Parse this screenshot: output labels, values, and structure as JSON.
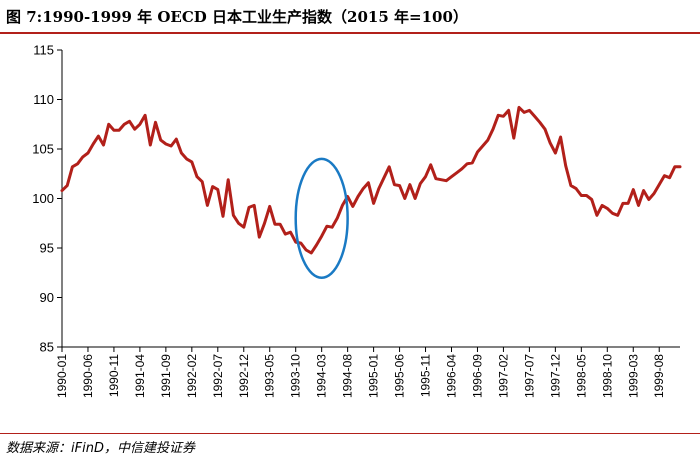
{
  "title": "图 7:1990-1999 年 OECD 日本工业生产指数（2015 年=100）",
  "source": "数据来源：iFinD，中信建投证券",
  "colors": {
    "line": "#b2201a",
    "highlight": "#1a7ac4",
    "rule": "#b2201a",
    "axis": "#000000"
  },
  "chart_data": {
    "type": "line",
    "title": "1990-1999 年 OECD 日本工业生产指数（2015 年=100）",
    "xlabel": "",
    "ylabel": "",
    "ylim": [
      85,
      115
    ],
    "yticks": [
      85,
      90,
      95,
      100,
      105,
      110,
      115
    ],
    "xtick_labels": [
      "1990-01",
      "1990-06",
      "1990-11",
      "1991-04",
      "1991-09",
      "1992-02",
      "1992-07",
      "1992-12",
      "1993-05",
      "1993-10",
      "1994-03",
      "1994-08",
      "1995-01",
      "1995-06",
      "1995-11",
      "1996-04",
      "1996-09",
      "1997-02",
      "1997-07",
      "1997-12",
      "1998-05",
      "1998-10",
      "1999-03",
      "1999-08"
    ],
    "highlight": {
      "shape": "ellipse",
      "x_range": [
        "1993-10",
        "1994-08"
      ],
      "y_range": [
        92,
        104
      ]
    },
    "series": [
      {
        "name": "OECD 日本工业生产指数",
        "start": "1990-01",
        "values": [
          100.8,
          101.3,
          103.2,
          103.5,
          104.2,
          104.6,
          105.5,
          106.3,
          105.4,
          107.5,
          106.9,
          106.9,
          107.5,
          107.8,
          107.0,
          107.5,
          108.4,
          105.4,
          107.7,
          105.9,
          105.5,
          105.3,
          106.0,
          104.6,
          104.0,
          103.7,
          102.2,
          101.7,
          99.3,
          101.2,
          100.9,
          98.2,
          101.9,
          98.3,
          97.5,
          97.1,
          99.1,
          99.3,
          96.1,
          97.5,
          99.2,
          97.4,
          97.4,
          96.4,
          96.6,
          95.6,
          95.5,
          94.8,
          94.5,
          95.3,
          96.2,
          97.2,
          97.1,
          98.0,
          99.3,
          100.2,
          99.2,
          100.2,
          101.0,
          101.6,
          99.5,
          101.0,
          102.1,
          103.2,
          101.4,
          101.3,
          100.0,
          101.4,
          100.0,
          101.5,
          102.2,
          103.4,
          102.0,
          101.9,
          101.8,
          102.2,
          102.6,
          103.0,
          103.5,
          103.6,
          104.7,
          105.3,
          105.9,
          107.0,
          108.4,
          108.3,
          108.9,
          106.1,
          109.2,
          108.7,
          108.9,
          108.3,
          107.7,
          107.0,
          105.6,
          104.6,
          106.2,
          103.3,
          101.3,
          101.0,
          100.3,
          100.3,
          99.9,
          98.3,
          99.3,
          99.0,
          98.5,
          98.3,
          99.5,
          99.5,
          100.9,
          99.3,
          100.8,
          99.9,
          100.5,
          101.4,
          102.3,
          102.1,
          103.2,
          103.2
        ]
      }
    ]
  }
}
